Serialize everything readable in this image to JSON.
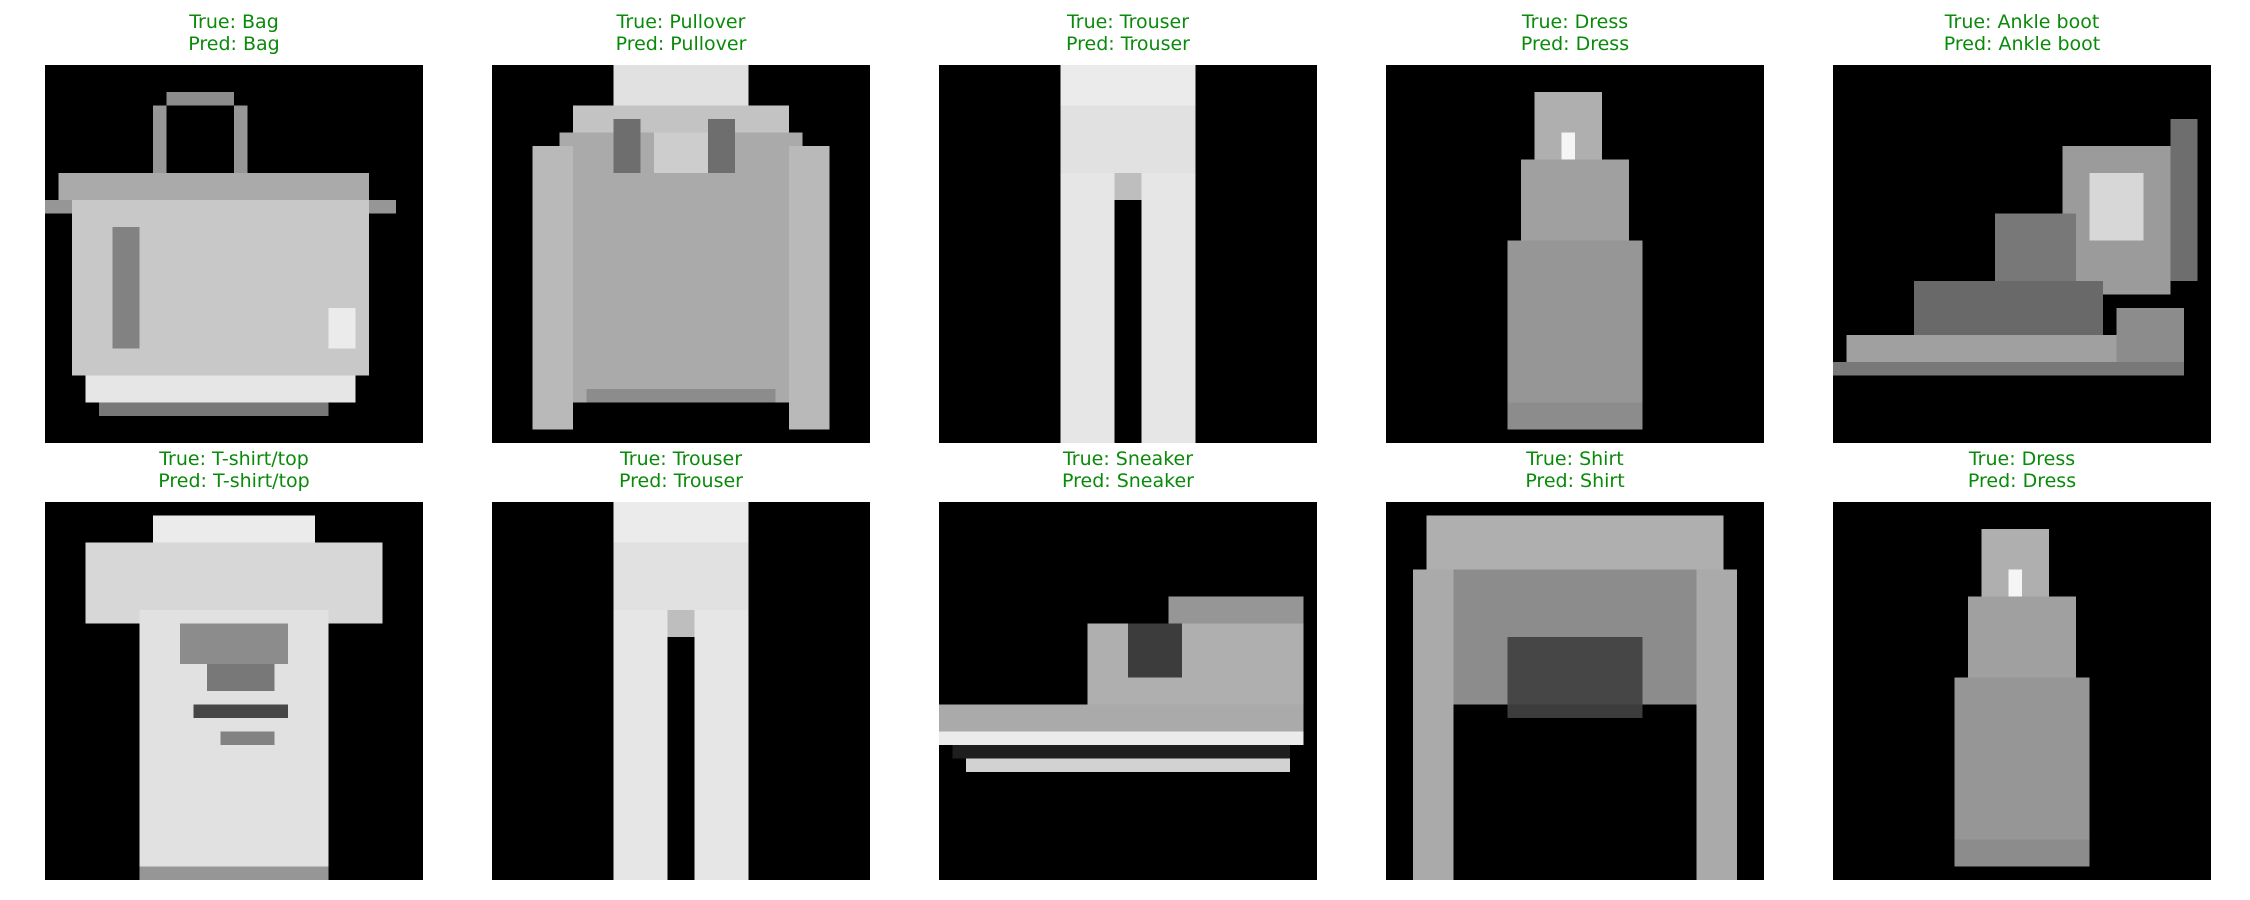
{
  "colors": {
    "caption_correct": "#0a8a0a",
    "panel_background": "#000000"
  },
  "icons": {
    "bag": "bag-image",
    "pullover": "pullover-image",
    "trouser": "trouser-image",
    "dress": "dress-image",
    "ankle_boot": "ankle-boot-image",
    "tshirt": "tshirt-image",
    "sneaker": "sneaker-image",
    "shirt": "shirt-image"
  },
  "panels": [
    {
      "true_text": "True: Bag",
      "pred_text": "Pred: Bag",
      "item": "bag"
    },
    {
      "true_text": "True: Pullover",
      "pred_text": "Pred: Pullover",
      "item": "pullover"
    },
    {
      "true_text": "True: Trouser",
      "pred_text": "Pred: Trouser",
      "item": "trouser"
    },
    {
      "true_text": "True: Dress",
      "pred_text": "Pred: Dress",
      "item": "dress"
    },
    {
      "true_text": "True: Ankle boot",
      "pred_text": "Pred: Ankle boot",
      "item": "ankle_boot"
    },
    {
      "true_text": "True: T-shirt/top",
      "pred_text": "Pred: T-shirt/top",
      "item": "tshirt"
    },
    {
      "true_text": "True: Trouser",
      "pred_text": "Pred: Trouser",
      "item": "trouser"
    },
    {
      "true_text": "True: Sneaker",
      "pred_text": "Pred: Sneaker",
      "item": "sneaker"
    },
    {
      "true_text": "True: Shirt",
      "pred_text": "Pred: Shirt",
      "item": "shirt"
    },
    {
      "true_text": "True: Dress",
      "pred_text": "Pred: Dress",
      "item": "dress"
    }
  ]
}
